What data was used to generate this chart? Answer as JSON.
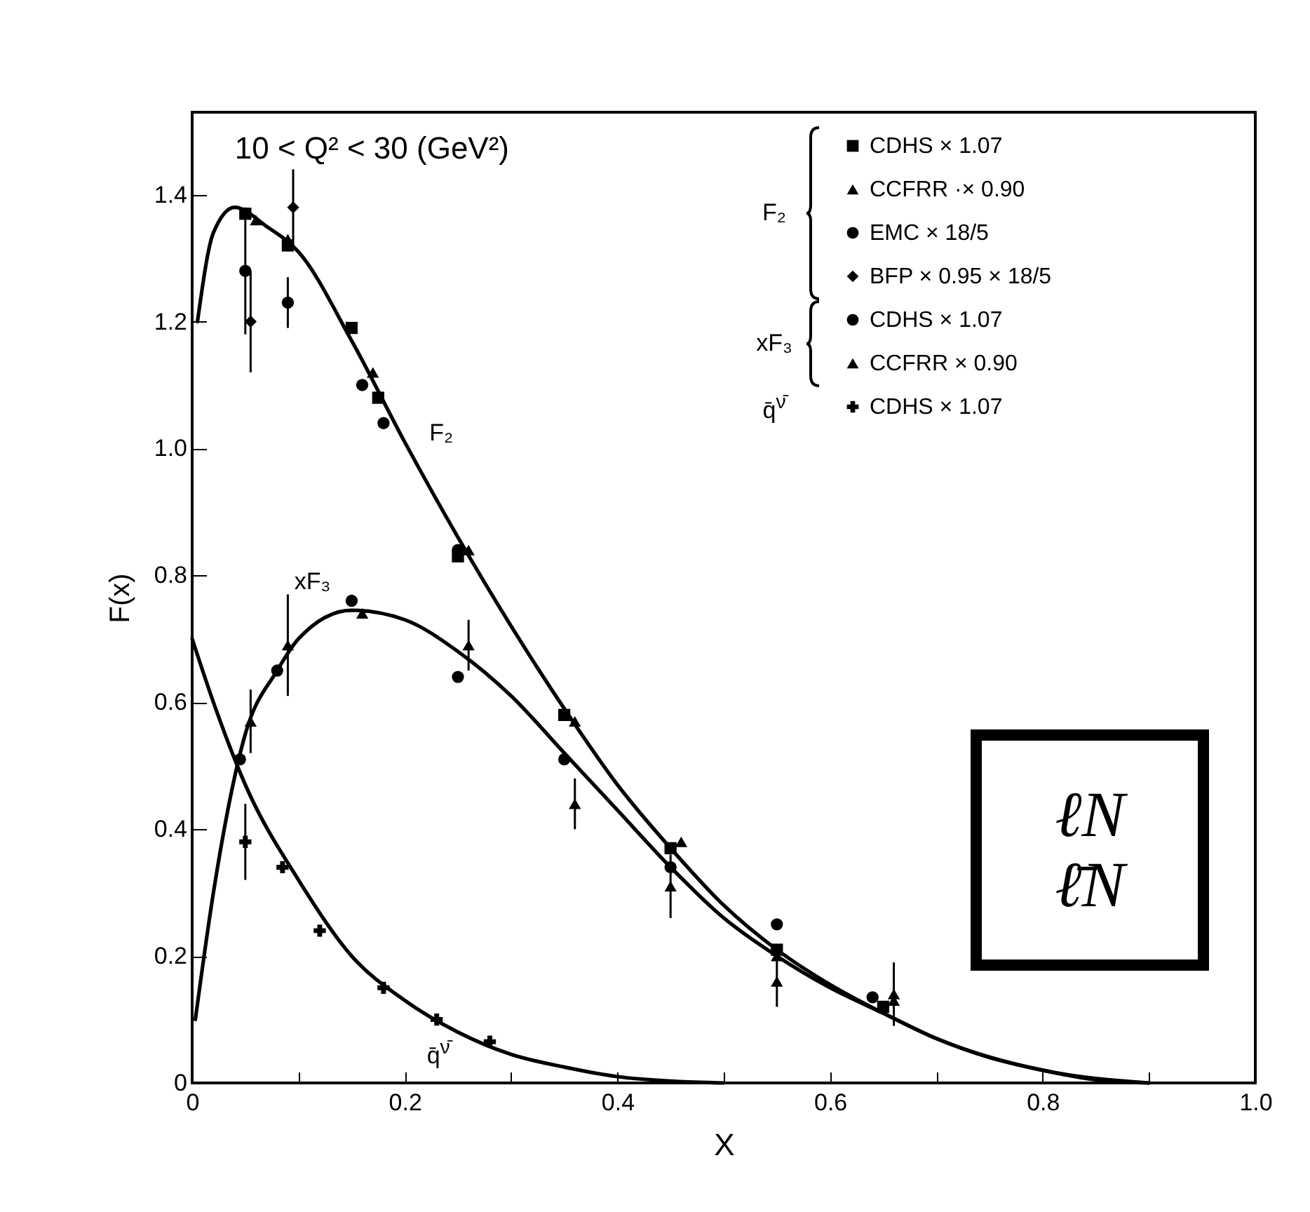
{
  "chart_data": {
    "type": "scatter",
    "title": "10 < Q² < 30 (GeV²)",
    "xlabel": "X",
    "ylabel": "F(x)",
    "xlim": [
      0,
      1.0
    ],
    "ylim": [
      0,
      1.53
    ],
    "xticks": [
      0,
      {
        "value": 0.1,
        "label": null
      },
      0.2,
      {
        "value": 0.3,
        "label": null
      },
      0.4,
      {
        "value": 0.5,
        "label": null
      },
      0.6,
      {
        "value": 0.7,
        "label": null
      },
      0.8,
      {
        "value": 0.9,
        "label": null
      },
      {
        "value": 1.0,
        "label": "1.0"
      }
    ],
    "yticks": [
      0,
      0.2,
      0.4,
      0.6,
      0.8,
      {
        "value": 1.0,
        "label": "1.0"
      },
      1.2,
      1.4
    ],
    "grid": false,
    "legend": "top right",
    "line_style": "solid",
    "annotations": [
      "F₂",
      "xF₃",
      "q̄$^{ν̄}$",
      "ℓN",
      "ℓ̄N"
    ],
    "series": [
      {
        "type": "line",
        "name": "F₂",
        "color": "#000000",
        "x": [
          0.005,
          0.02,
          0.04,
          0.07,
          0.1,
          0.15,
          0.2,
          0.25,
          0.3,
          0.35,
          0.4,
          0.45,
          0.5,
          0.55,
          0.6,
          0.65,
          0.7,
          0.75,
          0.8,
          0.85,
          0.9
        ],
        "values": [
          1.2,
          1.34,
          1.38,
          1.35,
          1.31,
          1.17,
          1.01,
          0.86,
          0.72,
          0.59,
          0.47,
          0.37,
          0.28,
          0.21,
          0.155,
          0.11,
          0.07,
          0.04,
          0.02,
          0.005,
          0
        ]
      },
      {
        "type": "line",
        "name": "xF₃",
        "color": "#000000",
        "x": [
          0.003,
          0.02,
          0.05,
          0.08,
          0.1,
          0.15,
          0.2,
          0.25,
          0.3,
          0.35,
          0.4,
          0.45,
          0.5,
          0.55,
          0.6,
          0.65,
          0.7,
          0.8,
          0.9
        ],
        "values": [
          0.1,
          0.3,
          0.55,
          0.65,
          0.7,
          0.745,
          0.73,
          0.68,
          0.61,
          0.52,
          0.43,
          0.34,
          0.26,
          0.2,
          0.15,
          0.11,
          0.07,
          0.02,
          0
        ]
      },
      {
        "type": "line",
        "name": "q̄$^{ν̄}$",
        "color": "#000000",
        "x": [
          0,
          0.02,
          0.05,
          0.1,
          0.15,
          0.2,
          0.25,
          0.3,
          0.35,
          0.4,
          0.45,
          0.5
        ],
        "values": [
          0.7,
          0.6,
          0.47,
          0.32,
          0.2,
          0.13,
          0.08,
          0.045,
          0.025,
          0.01,
          0.003,
          0
        ]
      },
      {
        "name": "CDHS × 1.07",
        "color": "#000000",
        "marker": "square",
        "x": [
          0.05,
          0.09,
          0.15,
          0.175,
          0.25,
          0.35,
          0.45,
          0.55,
          0.65
        ],
        "values": [
          1.37,
          1.32,
          1.19,
          1.08,
          0.83,
          0.58,
          0.37,
          0.21,
          0.12
        ]
      },
      {
        "name": "CCFRR ·× 0.90",
        "color": "#000000",
        "marker": "triangle",
        "x": [
          0.06,
          0.09,
          0.17,
          0.26,
          0.36,
          0.46,
          0.55,
          0.66
        ],
        "values": [
          1.36,
          1.33,
          1.12,
          0.84,
          0.57,
          0.38,
          0.2,
          0.13
        ]
      },
      {
        "name": "EMC    × 18/5",
        "color": "#000000",
        "marker": "circle",
        "x": [
          0.05,
          0.09,
          0.16,
          0.18,
          0.25
        ],
        "values": [
          1.28,
          1.23,
          1.1,
          1.04,
          0.84
        ],
        "errors": [
          0.1,
          0.04,
          null,
          null,
          null
        ]
      },
      {
        "name": "BFP     × 0.95 × 18/5",
        "color": "#000000",
        "marker": "diamond",
        "x": [
          0.055,
          0.095
        ],
        "values": [
          1.2,
          1.38
        ],
        "errors": [
          0.08,
          0.06
        ]
      },
      {
        "name": "CDHS × 1.07",
        "color": "#000000",
        "marker": "circle",
        "x": [
          0.045,
          0.08,
          0.15,
          0.25,
          0.35,
          0.45,
          0.55,
          0.64
        ],
        "values": [
          0.51,
          0.65,
          0.76,
          0.64,
          0.51,
          0.34,
          0.25,
          0.135
        ]
      },
      {
        "name": "CCFRR × 0.90",
        "color": "#000000",
        "marker": "triangle",
        "x": [
          0.055,
          0.09,
          0.16,
          0.26,
          0.36,
          0.45,
          0.55,
          0.66
        ],
        "values": [
          0.57,
          0.69,
          0.74,
          0.69,
          0.44,
          0.31,
          0.16,
          0.14
        ],
        "errors": [
          0.05,
          0.08,
          null,
          0.04,
          0.04,
          0.05,
          0.04,
          0.05
        ]
      },
      {
        "name": "CDHS × 1.07",
        "color": "#000000",
        "marker": "cross",
        "x": [
          0.05,
          0.085,
          0.12,
          0.18,
          0.23,
          0.28
        ],
        "values": [
          0.38,
          0.34,
          0.24,
          0.15,
          0.1,
          0.065
        ],
        "errors": [
          0.06,
          null,
          null,
          null,
          null,
          null
        ]
      }
    ]
  }
}
